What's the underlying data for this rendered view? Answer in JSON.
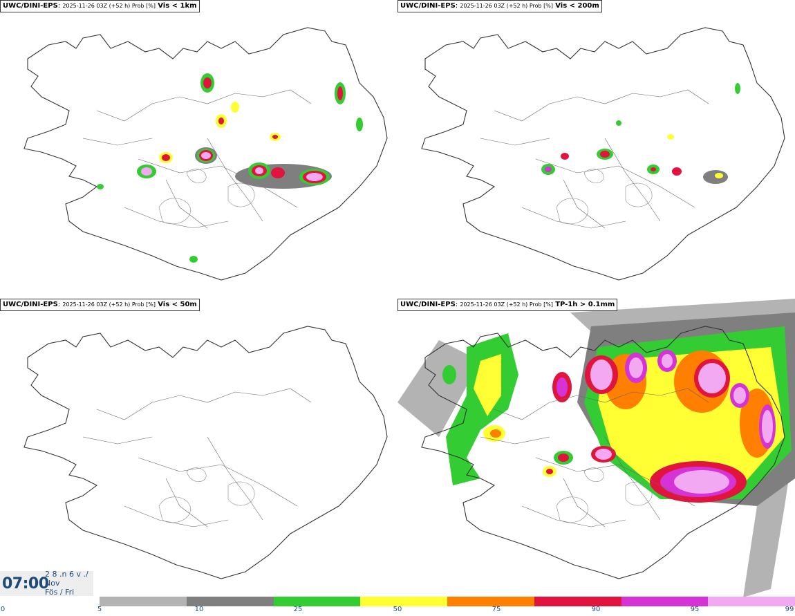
{
  "panels": [
    {
      "model": "UWC/DINI-EPS",
      "meta": "2025-11-26 03Z (+52 h) Prob [%]",
      "variable": "Vis < 1km"
    },
    {
      "model": "UWC/DINI-EPS",
      "meta": "2025-11-26 03Z (+52 h) Prob [%]",
      "variable": "Vis < 200m"
    },
    {
      "model": "UWC/DINI-EPS",
      "meta": "2025-11-26 03Z (+52 h) Prob [%]",
      "variable": "Vis < 50m"
    },
    {
      "model": "UWC/DINI-EPS",
      "meta": "2025-11-26 03Z (+52 h) Prob [%]",
      "variable": "TP-1h > 0.1mm"
    }
  ],
  "clock": {
    "time": "07:00",
    "line1": "2 8 .n 6 v ./",
    "line2": "Nov",
    "line3": "Fös / Fri"
  },
  "legend": {
    "ticks": [
      "0",
      "5",
      "10",
      "25",
      "50",
      "75",
      "90",
      "95",
      "99"
    ],
    "colors": [
      "#b3b3b3",
      "#7f7f7f",
      "#33cc33",
      "#ffff33",
      "#ff7f00",
      "#e0143c",
      "#d633d6",
      "#f2a9f2"
    ]
  }
}
